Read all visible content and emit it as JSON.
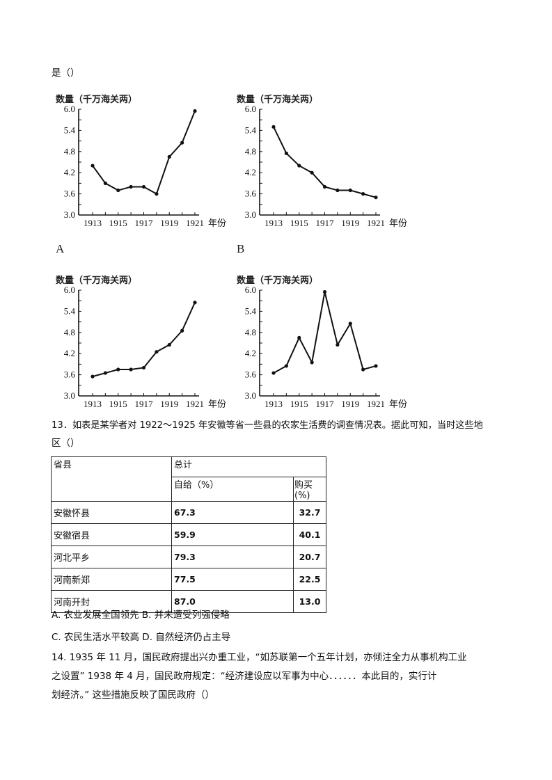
{
  "question12_tail": "是（）",
  "charts_common": {
    "y_title": "数量（千万海关两）",
    "x_unit": "年份",
    "y_ticks": [
      "6.0",
      "5.4",
      "4.8",
      "4.2",
      "3.6",
      "3.0"
    ],
    "x_ticks": [
      "1913",
      "1915",
      "1917",
      "1919",
      "1921"
    ]
  },
  "option_labels": {
    "a": "A",
    "b": "B"
  },
  "chart_data": [
    {
      "type": "line",
      "panel": "A",
      "title": "数量（千万海关两）",
      "xlabel": "年份",
      "ylabel": "数量（千万海关两）",
      "ylim": [
        3.0,
        6.0
      ],
      "x": [
        1913,
        1914,
        1915,
        1916,
        1917,
        1918,
        1919,
        1920,
        1921
      ],
      "values": [
        4.4,
        3.9,
        3.7,
        3.8,
        3.8,
        3.6,
        4.65,
        5.05,
        5.95
      ]
    },
    {
      "type": "line",
      "panel": "B",
      "title": "数量（千万海关两）",
      "xlabel": "年份",
      "ylabel": "数量（千万海关两）",
      "ylim": [
        3.0,
        6.0
      ],
      "x": [
        1913,
        1914,
        1915,
        1916,
        1917,
        1918,
        1919,
        1920,
        1921
      ],
      "values": [
        5.5,
        4.75,
        4.4,
        4.2,
        3.8,
        3.7,
        3.7,
        3.6,
        3.5
      ]
    },
    {
      "type": "line",
      "panel": "C",
      "title": "数量（千万海关两）",
      "xlabel": "年份",
      "ylabel": "数量（千万海关两）",
      "ylim": [
        3.0,
        6.0
      ],
      "x": [
        1913,
        1914,
        1915,
        1916,
        1917,
        1918,
        1919,
        1920,
        1921
      ],
      "values": [
        3.55,
        3.65,
        3.75,
        3.75,
        3.8,
        4.25,
        4.45,
        4.85,
        5.65
      ]
    },
    {
      "type": "line",
      "panel": "D",
      "title": "数量（千万海关两）",
      "xlabel": "年份",
      "ylabel": "数量（千万海关两）",
      "ylim": [
        3.0,
        6.0
      ],
      "x": [
        1913,
        1914,
        1915,
        1916,
        1917,
        1918,
        1919,
        1920,
        1921
      ],
      "values": [
        3.65,
        3.85,
        4.65,
        3.95,
        5.95,
        4.45,
        5.05,
        3.75,
        3.85
      ]
    }
  ],
  "question13": {
    "line1": "13．如表是某学者对 1922～1925 年安徽等省一些县的农家生活费的调查情况表。据此可知，当时这些地",
    "line2": "区（）",
    "table": {
      "header_col": "省县",
      "header_group": "总计",
      "sub_self": "自给（%）",
      "sub_buy": "购买(%)",
      "rows": [
        {
          "county": "安徽怀县",
          "self": "67.3",
          "buy": "32.7"
        },
        {
          "county": "安徽宿县",
          "self": "59.9",
          "buy": "40.1"
        },
        {
          "county": "河北平乡",
          "self": "79.3",
          "buy": "20.7"
        },
        {
          "county": "河南新郑",
          "self": "77.5",
          "buy": "22.5"
        },
        {
          "county": "河南开封",
          "self": "87.0",
          "buy": "13.0"
        }
      ]
    },
    "options_line1": "A. 农业发展全国领先 B. 并未遭受列强侵略",
    "options_line2": "C. 农民生活水平较高 D. 自然经济仍占主导"
  },
  "question14": {
    "line1": "14. 1935 年 11 月，国民政府提出兴办重工业，“如苏联第一个五年计划，亦倾注全力从事机构工业",
    "line2": "之设置” 1938 年 4 月，国民政府规定：“经济建设应以军事为中心．．．．．．本此目的，实行计",
    "line3": "划经济。” 这些措施反映了国民政府（）"
  }
}
